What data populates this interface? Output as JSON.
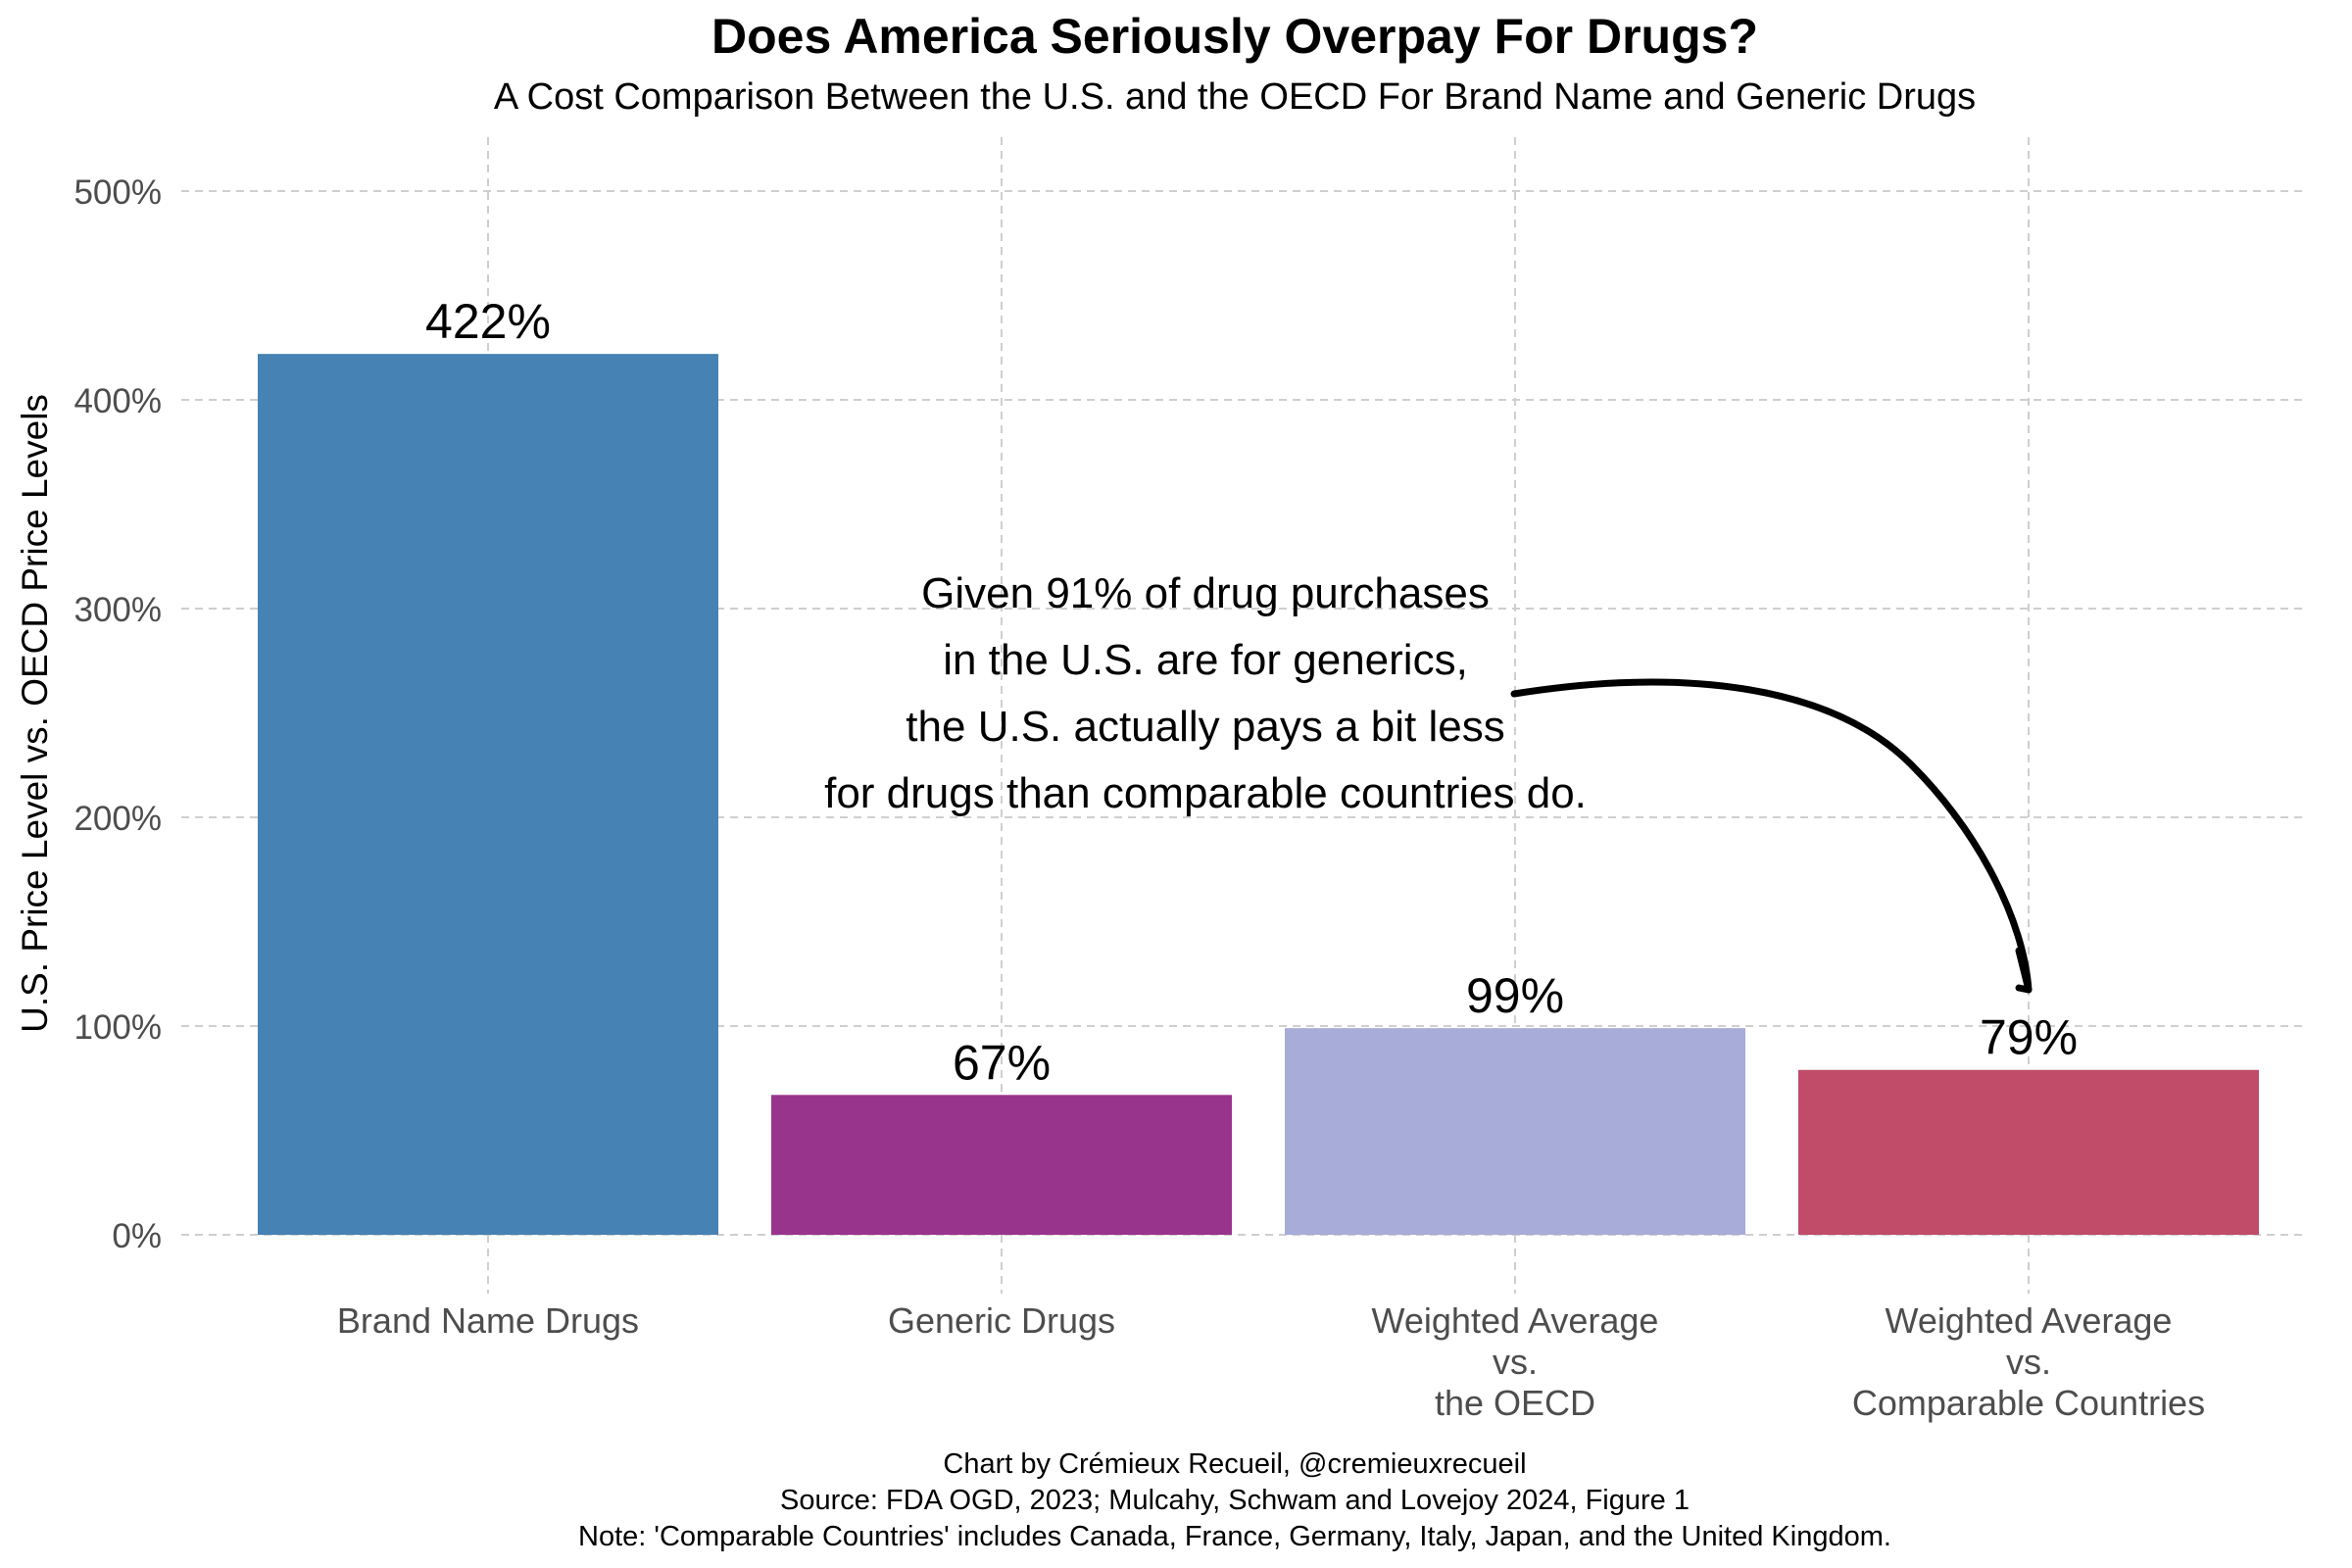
{
  "chart_data": {
    "type": "bar",
    "title": "Does America Seriously Overpay For Drugs?",
    "subtitle": "A Cost Comparison Between the U.S. and the OECD For Brand Name and Generic Drugs",
    "ylabel": "U.S. Price Level vs. OECD Price Levels",
    "xlabel": "",
    "ylim": [
      0,
      500
    ],
    "yticks": [
      0,
      100,
      200,
      300,
      400,
      500
    ],
    "ytick_labels": [
      "0%",
      "100%",
      "200%",
      "300%",
      "400%",
      "500%"
    ],
    "grid": true,
    "categories": [
      [
        "Brand Name Drugs"
      ],
      [
        "Generic Drugs"
      ],
      [
        "Weighted Average",
        "vs.",
        "the OECD"
      ],
      [
        "Weighted Average",
        "vs.",
        "Comparable Countries"
      ]
    ],
    "values": [
      422,
      67,
      99,
      79
    ],
    "value_labels": [
      "422%",
      "67%",
      "99%",
      "79%"
    ],
    "colors": [
      "#4682b4",
      "#99348c",
      "#a8acd8",
      "#c04c69"
    ],
    "annotation": {
      "lines": [
        "Given 91% of drug purchases",
        "in the U.S. are for generics,",
        "the U.S. actually pays a bit less",
        "for drugs than comparable countries do."
      ],
      "points_to": "Weighted Average vs. Comparable Countries"
    }
  },
  "caption": {
    "line1": "Chart by Crémieux Recueil, @cremieuxrecueil",
    "line2": "Source: FDA OGD, 2023; Mulcahy, Schwam and Lovejoy 2024, Figure 1",
    "line3": "Note: 'Comparable Countries' includes Canada, France, Germany, Italy, Japan, and the United Kingdom."
  }
}
